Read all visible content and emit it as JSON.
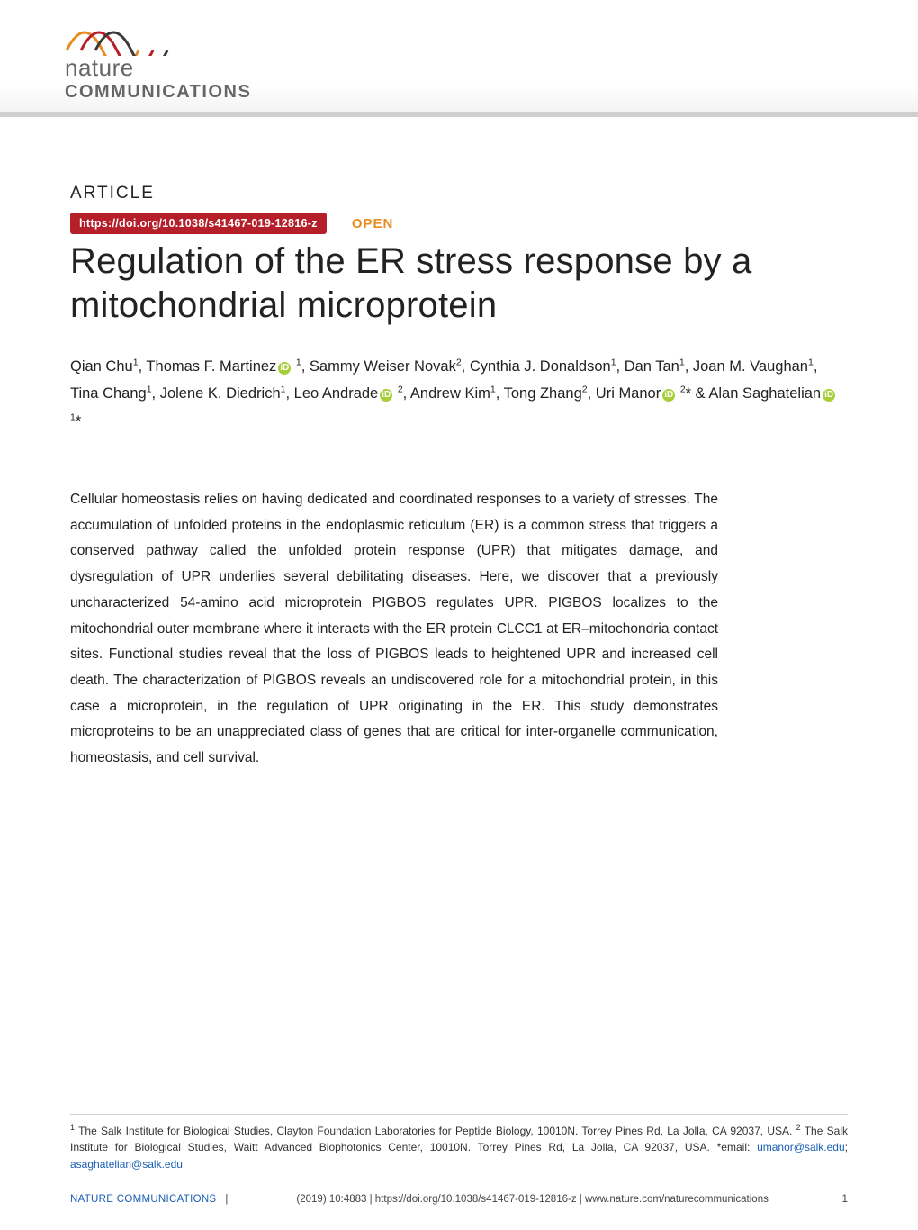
{
  "journal": {
    "logo_line1": "nature",
    "logo_line2": "COMMUNICATIONS",
    "sine_color_1": "#e98b22",
    "sine_color_2": "#b51f2a",
    "sine_color_3": "#3a3a3a"
  },
  "header": {
    "article_label": "ARTICLE",
    "doi_text": "https://doi.org/10.1038/s41467-019-12816-z",
    "open_label": "OPEN",
    "doi_bg": "#b51f2a",
    "open_color": "#e98b22"
  },
  "title": "Regulation of the ER stress response by a mitochondrial microprotein",
  "authors_html": "Qian Chu<sup>1</sup>, Thomas F. Martinez<span class=\"orcid\" data-name=\"orcid-icon\" data-interactable=\"false\">iD</span> <sup>1</sup>, Sammy Weiser Novak<sup>2</sup>, Cynthia J. Donaldson<sup>1</sup>, Dan Tan<sup>1</sup>, Joan M. Vaughan<sup>1</sup>, Tina Chang<sup>1</sup>, Jolene K. Diedrich<sup>1</sup>, Leo Andrade<span class=\"orcid\" data-name=\"orcid-icon\" data-interactable=\"false\">iD</span> <sup>2</sup>, Andrew Kim<sup>1</sup>, Tong Zhang<sup>2</sup>, Uri Manor<span class=\"orcid\" data-name=\"orcid-icon\" data-interactable=\"false\">iD</span> <sup>2</sup>* &amp; Alan Saghatelian<span class=\"orcid\" data-name=\"orcid-icon\" data-interactable=\"false\">iD</span> <sup>1</sup>*",
  "abstract": "Cellular homeostasis relies on having dedicated and coordinated responses to a variety of stresses. The accumulation of unfolded proteins in the endoplasmic reticulum (ER) is a common stress that triggers a conserved pathway called the unfolded protein response (UPR) that mitigates damage, and dysregulation of UPR underlies several debilitating diseases. Here, we discover that a previously uncharacterized 54-amino acid microprotein PIGBOS regulates UPR. PIGBOS localizes to the mitochondrial outer membrane where it interacts with the ER protein CLCC1 at ER–mitochondria contact sites. Functional studies reveal that the loss of PIGBOS leads to heightened UPR and increased cell death. The characterization of PIGBOS reveals an undiscovered role for a mitochondrial protein, in this case a microprotein, in the regulation of UPR originating in the ER. This study demonstrates microproteins to be an unappreciated class of genes that are critical for inter-organelle communication, homeostasis, and cell survival.",
  "affiliations": {
    "text_prefix": "The Salk Institute for Biological Studies, Clayton Foundation Laboratories for Peptide Biology, 10010N. Torrey Pines Rd, La Jolla, CA 92037, USA.",
    "aff2": "The Salk Institute for Biological Studies, Waitt Advanced Biophotonics Center, 10010N. Torrey Pines Rd, La Jolla, CA 92037, USA.",
    "corr_label": "*email:",
    "email1": "umanor@salk.edu",
    "email2": "asaghatelian@salk.edu"
  },
  "footer": {
    "journal": "NATURE COMMUNICATIONS",
    "meta": "(2019) 10:4883 | https://doi.org/10.1038/s41467-019-12816-z | www.nature.com/naturecommunications",
    "page": "1",
    "sep": "|"
  },
  "style": {
    "title_fontsize": 40,
    "title_fontweight": 300,
    "body_fontsize": 15.5,
    "authors_fontsize": 16.5,
    "affil_fontsize": 12,
    "footer_fontsize": 11.5,
    "link_color": "#1a5fb4",
    "rule_color": "#cfcfcf",
    "orcid_bg": "#a6ce39"
  }
}
